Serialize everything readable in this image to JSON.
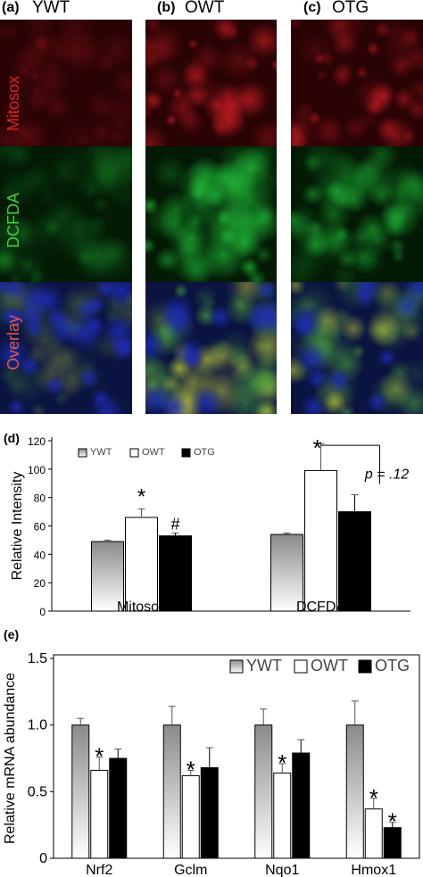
{
  "panels": {
    "a": "(a)",
    "a_title": "YWT",
    "b": "(b)",
    "b_title": "OWT",
    "c": "(c)",
    "c_title": "OTG",
    "d": "(d)",
    "e": "(e)"
  },
  "row_labels": [
    "Mitosox",
    "DCFDA",
    "Overlay"
  ],
  "colors": {
    "mitosox_red": "#e0222a",
    "dcfda_green": "#22c13a",
    "overlay_blue": "#1e2bb5",
    "overlay_yellow": "#d8e43c",
    "row_label_mitosox": "#e0222a",
    "row_label_dcfda": "#3fd13a",
    "row_label_overlay": "#e05a4a"
  },
  "chart_data": [
    {
      "type": "bar",
      "panel": "(d)",
      "categories": [
        "Mitosox",
        "DCFDA"
      ],
      "series": [
        {
          "name": "YWT",
          "values": [
            49,
            54
          ],
          "errors": [
            1,
            1
          ]
        },
        {
          "name": "OWT",
          "values": [
            66,
            99
          ],
          "errors": [
            6,
            19
          ]
        },
        {
          "name": "OTG",
          "values": [
            53,
            70
          ],
          "errors": [
            2,
            12
          ]
        }
      ],
      "ylabel": "Relative Intensity",
      "ylim": [
        0,
        120
      ],
      "yticks": [
        "0",
        "20",
        "40",
        "60",
        "80",
        "100",
        "120"
      ],
      "annotations": [
        "*",
        "#",
        "*",
        "p = .12"
      ],
      "legend": "top"
    },
    {
      "type": "bar",
      "panel": "(e)",
      "categories": [
        "Nrf2",
        "Gclm",
        "Nqo1",
        "Hmox1"
      ],
      "series": [
        {
          "name": "YWT",
          "values": [
            1.0,
            1.0,
            1.0,
            1.0
          ],
          "errors": [
            0.05,
            0.14,
            0.12,
            0.18
          ]
        },
        {
          "name": "OWT",
          "values": [
            0.66,
            0.62,
            0.64,
            0.37
          ],
          "errors": [
            0.1,
            0.04,
            0.07,
            0.08
          ]
        },
        {
          "name": "OTG",
          "values": [
            0.75,
            0.68,
            0.79,
            0.23
          ],
          "errors": [
            0.07,
            0.15,
            0.1,
            0.04
          ]
        }
      ],
      "ylabel": "Relative mRNA abundance",
      "ylim": [
        0,
        1.5
      ],
      "yticks": [
        "0",
        "0.5",
        "1.0",
        "1.5"
      ],
      "annotations": [
        "*",
        "*",
        "*",
        "*",
        "*"
      ],
      "legend": "top-right"
    }
  ]
}
